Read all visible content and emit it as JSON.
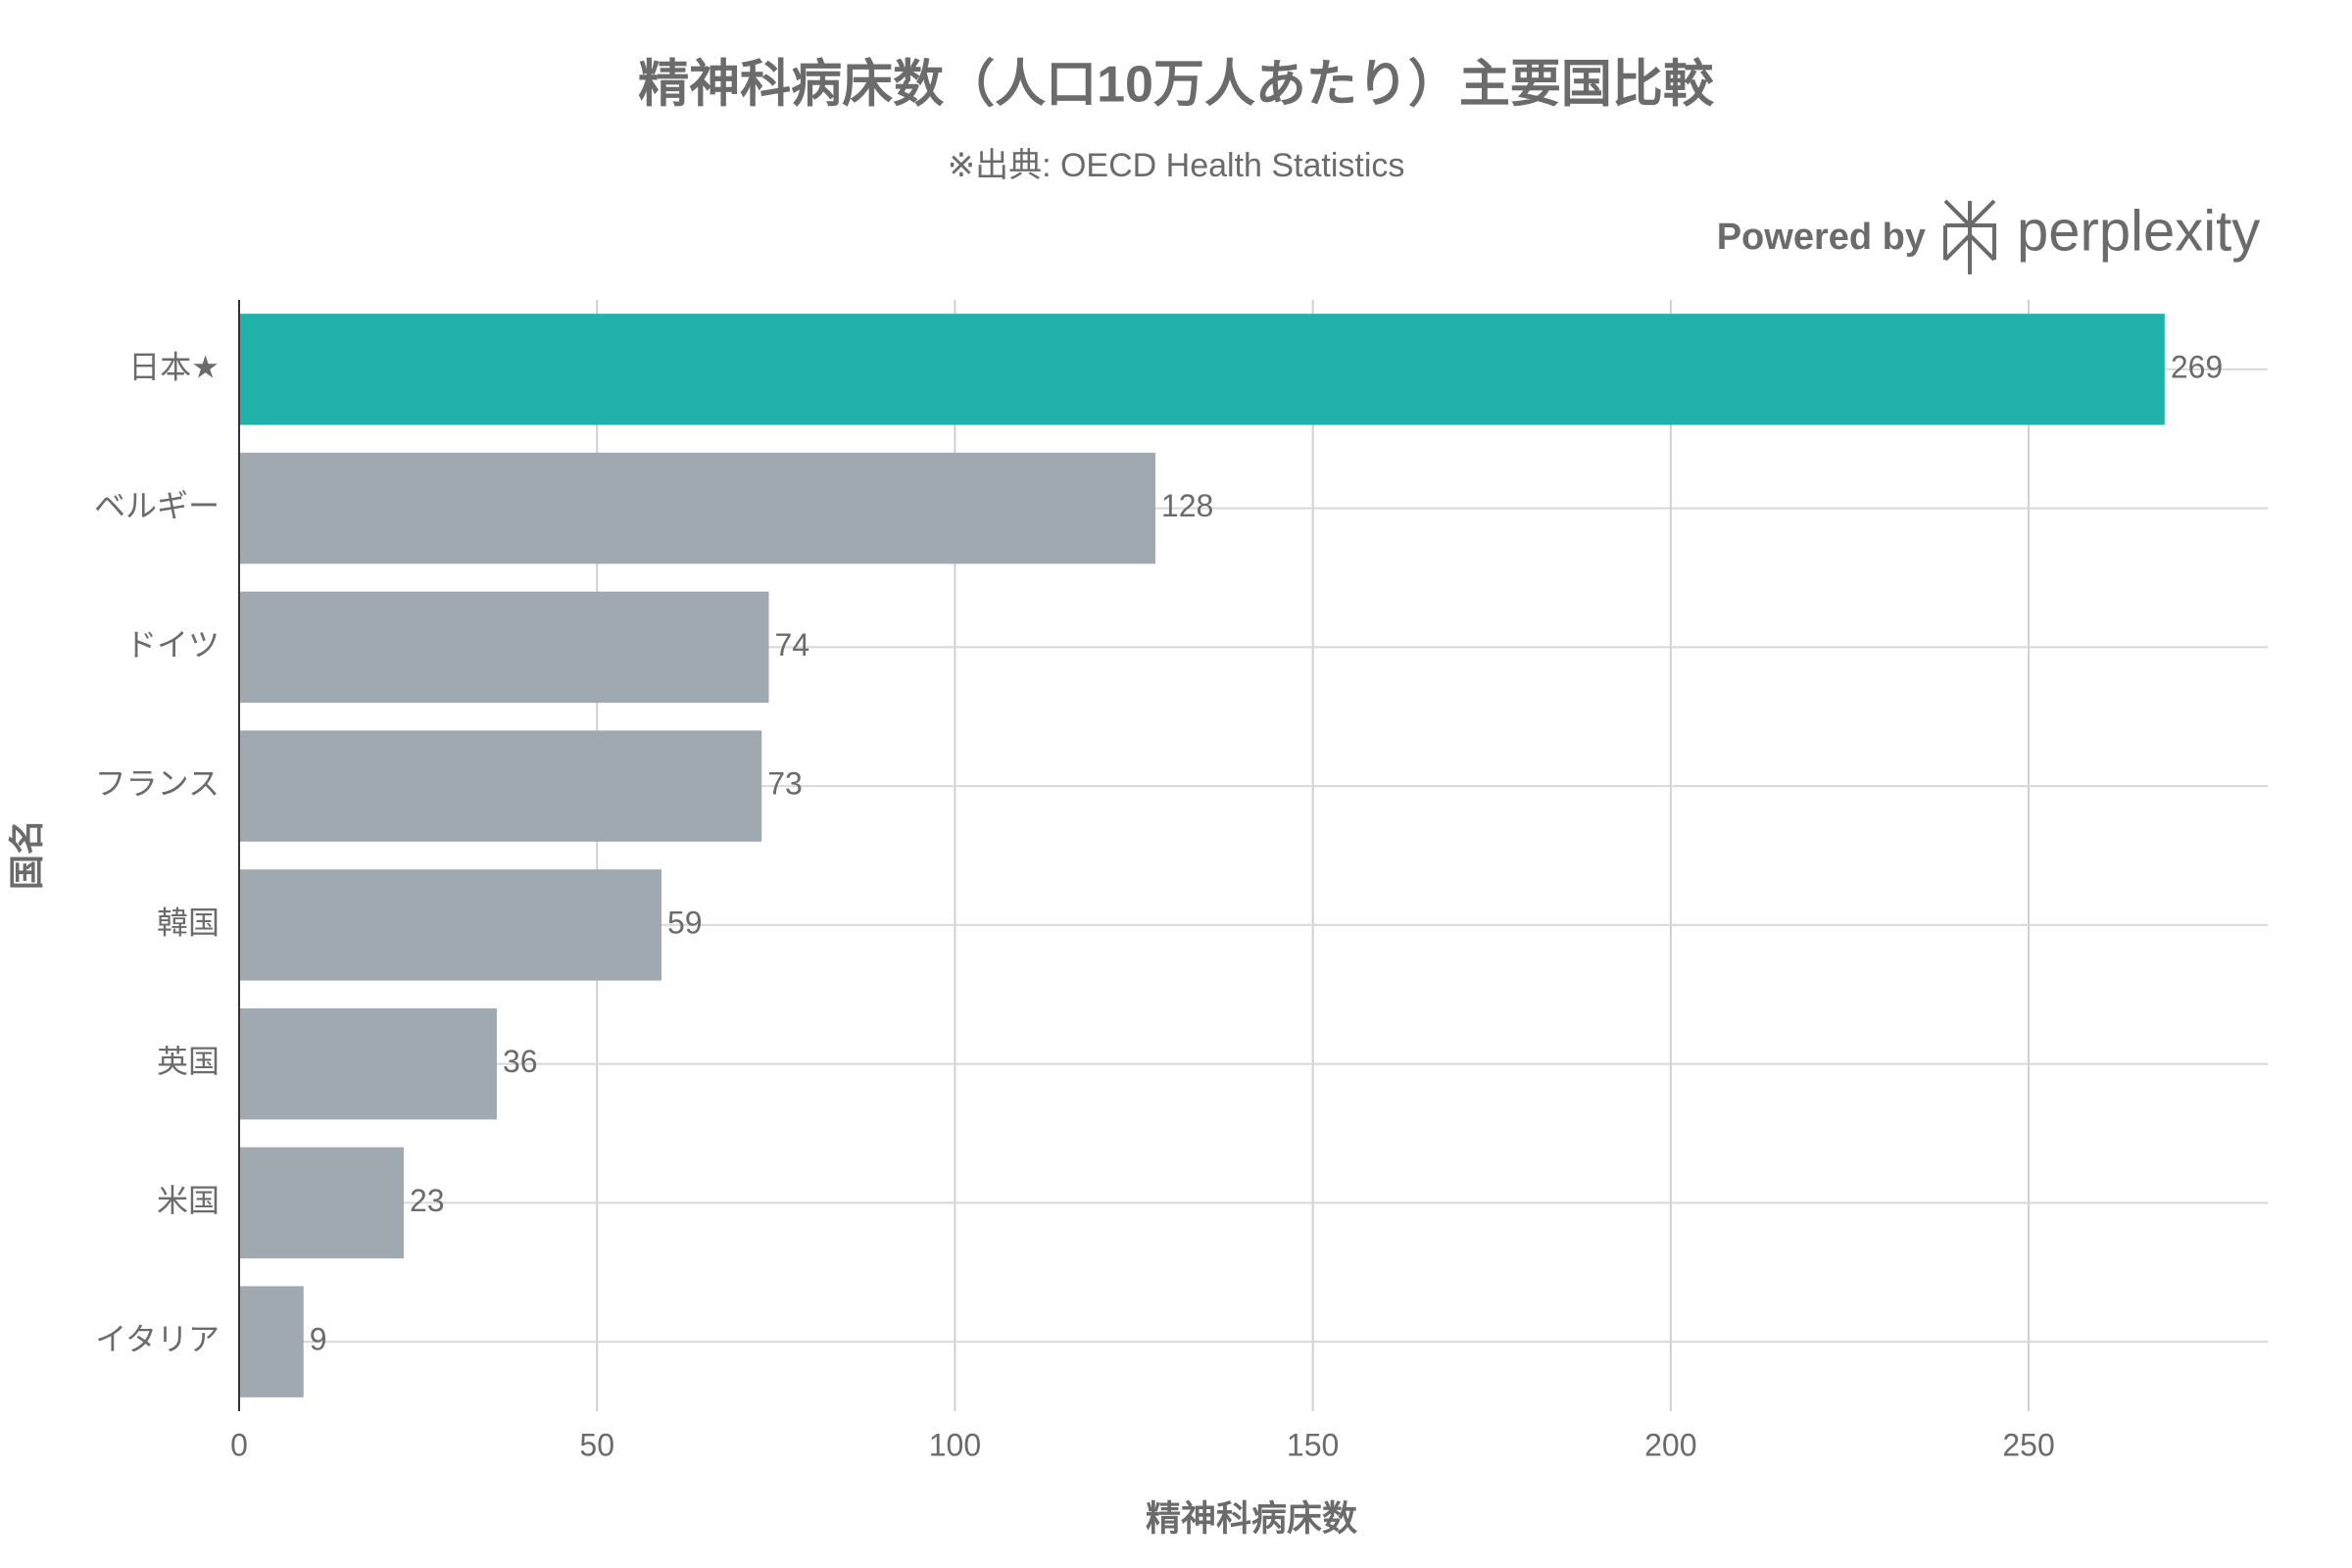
{
  "chart_data": {
    "type": "hbar",
    "title": "精神科病床数（人口10万人あたり）主要国比較",
    "subtitle": "※出典: OECD Health Statistics",
    "watermark": {
      "prefix": "Powered by",
      "brand": "perplexity"
    },
    "x_label": "精神科病床数",
    "y_label": "国名",
    "categories": [
      "日本★",
      "ベルギー",
      "ドイツ",
      "フランス",
      "韓国",
      "英国",
      "米国",
      "イタリア"
    ],
    "values": [
      269,
      128,
      74,
      73,
      59,
      36,
      23,
      9
    ],
    "colors": [
      "#20b2aa",
      "#a0a8b0",
      "#a0a8b0",
      "#a0a8b0",
      "#a0a8b0",
      "#a0a8b0",
      "#a0a8b0",
      "#a0a8b0"
    ],
    "xlim": [
      0,
      283.4
    ],
    "xticks": [
      0,
      50,
      100,
      150,
      200,
      250
    ],
    "grid": true
  }
}
